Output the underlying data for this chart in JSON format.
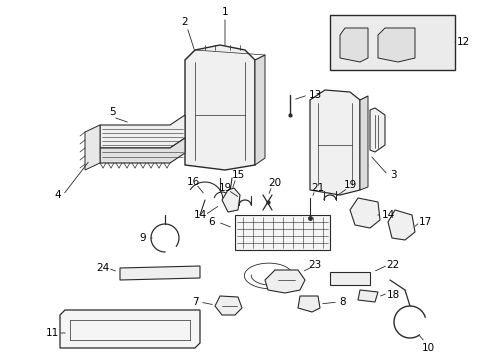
{
  "background_color": "#ffffff",
  "line_color": "#2a2a2a",
  "label_color": "#000000",
  "figsize": [
    4.89,
    3.6
  ],
  "dpi": 100,
  "annotation_fontsize": 7.5,
  "lw_main": 0.9,
  "lw_thin": 0.5
}
